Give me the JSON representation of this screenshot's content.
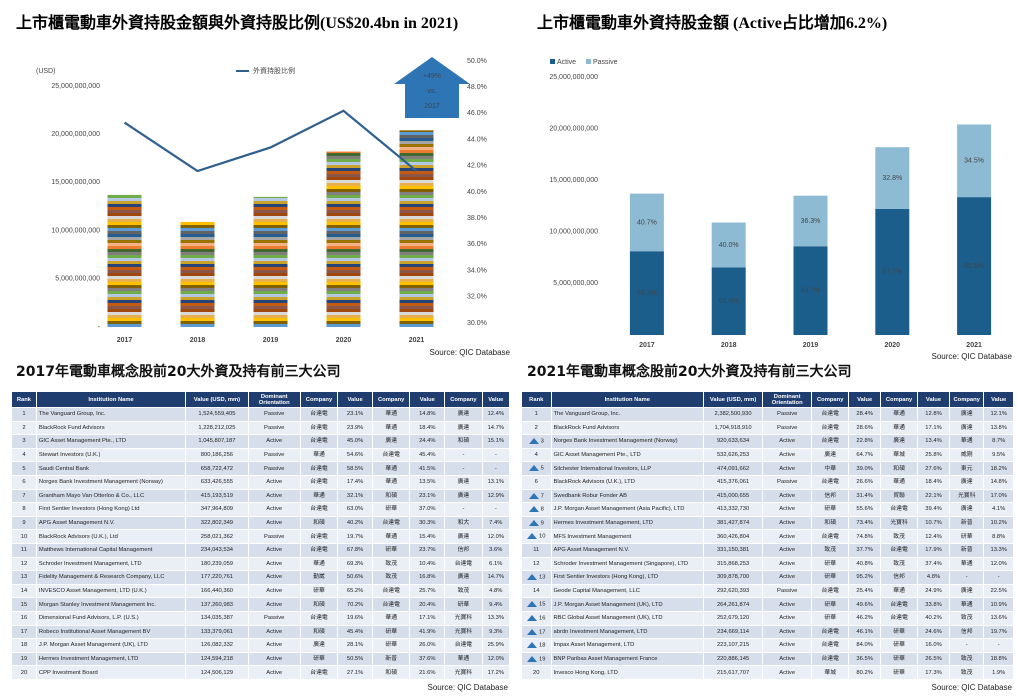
{
  "chart_data": [
    {
      "type": "bar_line",
      "title": "上市櫃電動車外資持股金額與外資持股比例(US$20.4bn in 2021)",
      "y_label": "(USD)",
      "categories": [
        "2017",
        "2018",
        "2019",
        "2020",
        "2021"
      ],
      "series": [
        {
          "type": "bar",
          "values": [
            13700000000,
            10900000000,
            13500000000,
            18200000000,
            20400000000
          ]
        },
        {
          "type": "line",
          "name": "外資持股比例",
          "color": "#2e5f8f",
          "axis": "y2",
          "values": [
            45.3,
            41.6,
            43.4,
            46.2,
            41.6
          ]
        }
      ],
      "ylim": [
        0,
        25000000000
      ],
      "yticks": [
        {
          "value": 0,
          "label": "-"
        },
        {
          "value": 5000000000,
          "label": "5,000,000,000"
        },
        {
          "value": 10000000000,
          "label": "10,000,000,000"
        },
        {
          "value": 15000000000,
          "label": "15,000,000,000"
        },
        {
          "value": 20000000000,
          "label": "20,000,000,000"
        },
        {
          "value": 25000000000,
          "label": "25,000,000,000"
        }
      ],
      "y2lim": [
        30,
        50
      ],
      "y2ticks": [
        {
          "value": 30,
          "label": "30.0%"
        },
        {
          "value": 32,
          "label": "32.0%"
        },
        {
          "value": 34,
          "label": "34.0%"
        },
        {
          "value": 36,
          "label": "36.0%"
        },
        {
          "value": 38,
          "label": "38.0%"
        },
        {
          "value": 40,
          "label": "40.0%"
        },
        {
          "value": 42,
          "label": "42.0%"
        },
        {
          "value": 44,
          "label": "44.0%"
        },
        {
          "value": 46,
          "label": "46.0%"
        },
        {
          "value": 48,
          "label": "48.0%"
        },
        {
          "value": 50,
          "label": "50.0%"
        }
      ],
      "annotation": [
        "+49%",
        "vs.",
        "2017"
      ],
      "source": "Source: QIC Database"
    },
    {
      "type": "stacked_bar",
      "title": "上市櫃電動車外資持股金額 (Active占比增加6.2%)",
      "categories": [
        "2017",
        "2018",
        "2019",
        "2020",
        "2021"
      ],
      "series": [
        {
          "name": "Active",
          "color": "#1b5e8c",
          "values": [
            8120000000,
            6540000000,
            8600000000,
            12230000000,
            13360000000
          ],
          "share_labels": [
            "59.3%",
            "60.0%",
            "63.7%",
            "67.2%",
            "65.5%"
          ]
        },
        {
          "name": "Passive",
          "color": "#8dbbd3",
          "values": [
            5580000000,
            4360000000,
            4900000000,
            5970000000,
            7040000000
          ],
          "share_labels": [
            "40.7%",
            "40.0%",
            "36.3%",
            "32.8%",
            "34.5%"
          ]
        }
      ],
      "ylim": [
        0,
        25000000000
      ],
      "yticks": [
        {
          "value": 5000000000,
          "label": "5,000,000,000"
        },
        {
          "value": 10000000000,
          "label": "10,000,000,000"
        },
        {
          "value": 15000000000,
          "label": "15,000,000,000"
        },
        {
          "value": 20000000000,
          "label": "20,000,000,000"
        },
        {
          "value": 25000000000,
          "label": "25,000,000,000"
        }
      ],
      "source": "Source: QIC Database"
    }
  ],
  "tables": [
    {
      "title": "2017年電動車概念股前20大外資及持有前三大公司",
      "columns": [
        "Rank",
        "Institution Name",
        "Value (USD, mm)",
        "Dominant Orientation",
        "Company",
        "Value",
        "Company",
        "Value",
        "Company",
        "Value"
      ],
      "rows": [
        [
          "1",
          "The Vanguard Group, Inc.",
          "1,524,559,405",
          "Passive",
          "台達電",
          "23.1%",
          "華通",
          "14.8%",
          "廣達",
          "12.4%"
        ],
        [
          "2",
          "BlackRock Fund Advisors",
          "1,228,212,025",
          "Passive",
          "台達電",
          "23.9%",
          "華通",
          "18.4%",
          "廣達",
          "14.7%"
        ],
        [
          "3",
          "GIC Asset Management Pte., LTD",
          "1,045,807,187",
          "Active",
          "台達電",
          "45.0%",
          "廣達",
          "24.4%",
          "和碩",
          "15.1%"
        ],
        [
          "4",
          "Stewart Investors (U.K.)",
          "800,186,256",
          "Passive",
          "華通",
          "54.6%",
          "台達電",
          "45.4%",
          "-",
          "-"
        ],
        [
          "5",
          "Saudi Central Bank",
          "658,722,472",
          "Passive",
          "台達電",
          "58.5%",
          "華通",
          "41.5%",
          "-",
          "-"
        ],
        [
          "6",
          "Norges Bank Investment Management (Norway)",
          "633,426,555",
          "Active",
          "台達電",
          "17.4%",
          "華通",
          "13.5%",
          "廣達",
          "13.1%"
        ],
        [
          "7",
          "Grantham Mayo Van Otterloo & Co., LLC",
          "415,193,519",
          "Active",
          "華通",
          "32.1%",
          "和碩",
          "23.1%",
          "廣達",
          "12.9%"
        ],
        [
          "8",
          "First Sentier Investors (Hong Kong) Ltd",
          "347,964,809",
          "Active",
          "台達電",
          "63.0%",
          "研華",
          "37.0%",
          "-",
          "-"
        ],
        [
          "9",
          "APG Asset Management N.V.",
          "322,802,349",
          "Active",
          "和碩",
          "40.2%",
          "台達電",
          "30.3%",
          "和大",
          "7.4%"
        ],
        [
          "10",
          "BlackRock Advisors (U.K.), Ltd",
          "258,021,362",
          "Passive",
          "台達電",
          "19.7%",
          "華通",
          "15.4%",
          "廣達",
          "12.0%"
        ],
        [
          "11",
          "Matthews International Capital Management",
          "234,043,534",
          "Active",
          "台達電",
          "67.8%",
          "研華",
          "23.7%",
          "信邦",
          "3.6%"
        ],
        [
          "12",
          "Schroder Investment Management, LTD",
          "180,239,059",
          "Active",
          "華通",
          "69.3%",
          "致茂",
          "10.4%",
          "台達電",
          "6.1%"
        ],
        [
          "13",
          "Fidelity Management & Research Company, LLC",
          "177,220,761",
          "Active",
          "勤崴",
          "50.6%",
          "致茂",
          "16.8%",
          "廣達",
          "14.7%"
        ],
        [
          "14",
          "INVESCO Asset Management, LTD (U.K.)",
          "166,440,360",
          "Active",
          "研華",
          "65.2%",
          "台達電",
          "25.7%",
          "致茂",
          "4.8%"
        ],
        [
          "15",
          "Morgan Stanley Investment Management Inc.",
          "137,260,983",
          "Active",
          "和碩",
          "70.2%",
          "台達電",
          "20.4%",
          "研華",
          "9.4%"
        ],
        [
          "16",
          "Dimensional Fund Advisors, L.P. (U.S.)",
          "134,035,387",
          "Passive",
          "台達電",
          "19.6%",
          "華通",
          "17.1%",
          "光寶科",
          "13.3%"
        ],
        [
          "17",
          "Robeco Institutional Asset Management BV",
          "133,379,061",
          "Active",
          "和碩",
          "45.4%",
          "研華",
          "41.9%",
          "光寶科",
          "9.3%"
        ],
        [
          "18",
          "J.P. Morgan Asset Management (UK), LTD",
          "126,082,332",
          "Active",
          "廣達",
          "28.1%",
          "研華",
          "26.0%",
          "台達電",
          "25.9%"
        ],
        [
          "19",
          "Hermes Investment Management, LTD",
          "124,594,218",
          "Active",
          "研華",
          "50.5%",
          "新普",
          "37.6%",
          "華通",
          "12.0%"
        ],
        [
          "20",
          "CPP Investment Board",
          "124,506,129",
          "Active",
          "台達電",
          "27.1%",
          "和碩",
          "21.6%",
          "光寶科",
          "17.2%"
        ]
      ],
      "source": "Source: QIC Database"
    },
    {
      "title": "2021年電動車概念股前20大外資及持有前三大公司",
      "columns": [
        "Rank",
        "Institution Name",
        "Value (USD, mm)",
        "Dominant Orientation",
        "Company",
        "Value",
        "Company",
        "Value",
        "Company",
        "Value"
      ],
      "rows": [
        [
          "1",
          "The Vanguard Group, Inc.",
          "2,382,500,930",
          "Passive",
          "台達電",
          "28.4%",
          "華通",
          "12.8%",
          "廣達",
          "12.1%"
        ],
        [
          "2",
          "BlackRock Fund Advisors",
          "1,704,918,910",
          "Passive",
          "台達電",
          "28.6%",
          "華通",
          "17.1%",
          "廣達",
          "13.8%"
        ],
        [
          "3",
          "Norges Bank Investment Management (Norway)",
          "920,633,634",
          "Active",
          "台達電",
          "22.8%",
          "廣達",
          "13.4%",
          "華通",
          "8.7%"
        ],
        [
          "4",
          "GIC Asset Management Pte., LTD",
          "532,626,253",
          "Active",
          "廣達",
          "64.7%",
          "華城",
          "25.8%",
          "威剛",
          "9.5%"
        ],
        [
          "5",
          "Silchester International Investors, LLP",
          "474,091,662",
          "Active",
          "中華",
          "39.0%",
          "和碩",
          "27.6%",
          "東元",
          "18.2%"
        ],
        [
          "6",
          "BlackRock Advisors (U.K.), LTD",
          "415,376,061",
          "Passive",
          "台達電",
          "26.6%",
          "華通",
          "18.4%",
          "廣達",
          "14.8%"
        ],
        [
          "7",
          "Swedbank Robur Fonder AB",
          "415,000,655",
          "Active",
          "信邦",
          "31.4%",
          "貿聯",
          "22.1%",
          "光寶科",
          "17.0%"
        ],
        [
          "8",
          "J.P. Morgan Asset Management (Asia Pacific), LTD",
          "413,332,730",
          "Active",
          "研華",
          "55.6%",
          "台達電",
          "39.4%",
          "廣達",
          "4.1%"
        ],
        [
          "9",
          "Hermes Investment Management, LTD",
          "381,427,874",
          "Active",
          "和碩",
          "73.4%",
          "光寶科",
          "10.7%",
          "新普",
          "10.2%"
        ],
        [
          "10",
          "MFS Investment Management",
          "360,426,804",
          "Active",
          "台達電",
          "74.8%",
          "致茂",
          "12.4%",
          "研華",
          "8.8%"
        ],
        [
          "11",
          "APG Asset Management N.V.",
          "331,150,381",
          "Active",
          "致茂",
          "37.7%",
          "台達電",
          "17.9%",
          "新普",
          "13.3%"
        ],
        [
          "12",
          "Schroder Investment Management (Singapore), LTD",
          "315,868,253",
          "Active",
          "研華",
          "40.8%",
          "致茂",
          "37.4%",
          "華通",
          "12.0%"
        ],
        [
          "13",
          "First Sentier Investors (Hong Kong), LTD",
          "309,878,700",
          "Active",
          "研華",
          "95.2%",
          "信邦",
          "4.8%",
          "-",
          "-"
        ],
        [
          "14",
          "Geode Capital Management, LLC",
          "292,620,393",
          "Passive",
          "台達電",
          "25.4%",
          "華通",
          "24.9%",
          "廣達",
          "22.5%"
        ],
        [
          "15",
          "J.P. Morgan Asset Management (UK), LTD",
          "264,261,874",
          "Active",
          "研華",
          "49.6%",
          "台達電",
          "33.8%",
          "華通",
          "10.9%"
        ],
        [
          "16",
          "RBC Global Asset Management (UK), LTD",
          "252,679,120",
          "Active",
          "研華",
          "46.2%",
          "台達電",
          "40.2%",
          "致茂",
          "13.6%"
        ],
        [
          "17",
          "abrdn Investment Management, LTD",
          "234,669,114",
          "Active",
          "台達電",
          "46.1%",
          "研華",
          "24.6%",
          "信邦",
          "19.7%"
        ],
        [
          "18",
          "Impax Asset Management, LTD",
          "223,107,215",
          "Active",
          "台達電",
          "84.0%",
          "研華",
          "16.0%",
          "-",
          "-"
        ],
        [
          "19",
          "BNP Paribas Asset Management France",
          "220,886,145",
          "Active",
          "台達電",
          "36.5%",
          "研華",
          "26.5%",
          "致茂",
          "18.8%"
        ],
        [
          "20",
          "Invesco Hong Kong, LTD",
          "215,617,707",
          "Active",
          "華城",
          "80.2%",
          "研華",
          "17.3%",
          "致茂",
          "1.9%"
        ]
      ],
      "source": "Source: QIC Database"
    }
  ]
}
